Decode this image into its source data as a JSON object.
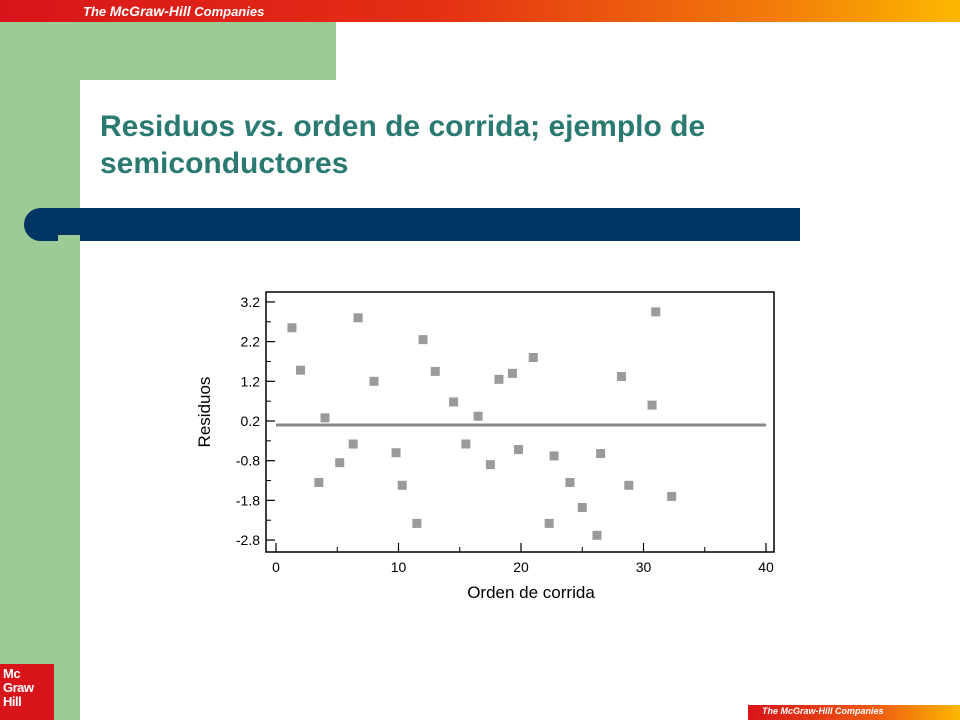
{
  "header": {
    "prefix": "The ",
    "brand": "McGraw-Hill",
    "suffix": " Companies"
  },
  "slide": {
    "title_part1": "Residuos ",
    "title_italic": "vs.",
    "title_part2": " orden de corrida; ejemplo de semiconductores"
  },
  "logo": {
    "line1": "Mc",
    "line2": "Graw",
    "line3": "Hill"
  },
  "footer": {
    "prefix": "The ",
    "brand": "McGraw-Hill",
    "suffix": " Companies"
  },
  "colors": {
    "title": "#2a7a72",
    "navy": "#003463",
    "green": "#9ccb95",
    "brand_red": "#d8141a",
    "point": "#9a9a9a",
    "reference_line": "#8a8a8a"
  },
  "chart_data": {
    "type": "scatter",
    "xlabel": "Orden de corrida",
    "ylabel": "Residuos",
    "xlim": [
      0,
      40
    ],
    "ylim": [
      -3.0,
      3.4
    ],
    "xticks": [
      0,
      10,
      20,
      30,
      40
    ],
    "xtick_labels": [
      "0",
      "10",
      "20",
      "30",
      "40"
    ],
    "yticks": [
      3.2,
      2.2,
      1.2,
      0.2,
      -0.8,
      -1.8,
      -2.8
    ],
    "ytick_labels": [
      "3.2",
      "2.2",
      "1.2",
      "0.2",
      "-0.8",
      "-1.8",
      "-2.8"
    ],
    "reference_line_y": 0.1,
    "grid": false,
    "points": [
      {
        "x": 1.3,
        "y": 2.55
      },
      {
        "x": 2.0,
        "y": 1.48
      },
      {
        "x": 3.5,
        "y": -1.35
      },
      {
        "x": 4.0,
        "y": 0.28
      },
      {
        "x": 5.2,
        "y": -0.85
      },
      {
        "x": 6.3,
        "y": -0.38
      },
      {
        "x": 6.7,
        "y": 2.8
      },
      {
        "x": 8.0,
        "y": 1.2
      },
      {
        "x": 9.8,
        "y": -0.6
      },
      {
        "x": 10.3,
        "y": -1.42
      },
      {
        "x": 11.5,
        "y": -2.38
      },
      {
        "x": 12.0,
        "y": 2.25
      },
      {
        "x": 13.0,
        "y": 1.45
      },
      {
        "x": 14.5,
        "y": 0.68
      },
      {
        "x": 15.5,
        "y": -0.38
      },
      {
        "x": 16.5,
        "y": 0.32
      },
      {
        "x": 17.5,
        "y": -0.9
      },
      {
        "x": 18.2,
        "y": 1.25
      },
      {
        "x": 19.3,
        "y": 1.4
      },
      {
        "x": 19.8,
        "y": -0.52
      },
      {
        "x": 21.0,
        "y": 1.8
      },
      {
        "x": 22.3,
        "y": -2.38
      },
      {
        "x": 22.7,
        "y": -0.68
      },
      {
        "x": 24.0,
        "y": -1.35
      },
      {
        "x": 25.0,
        "y": -1.98
      },
      {
        "x": 26.2,
        "y": -2.68
      },
      {
        "x": 26.5,
        "y": -0.62
      },
      {
        "x": 28.2,
        "y": 1.32
      },
      {
        "x": 28.8,
        "y": -1.42
      },
      {
        "x": 30.7,
        "y": 0.6
      },
      {
        "x": 31.0,
        "y": 2.95
      },
      {
        "x": 32.3,
        "y": -1.7
      }
    ]
  }
}
